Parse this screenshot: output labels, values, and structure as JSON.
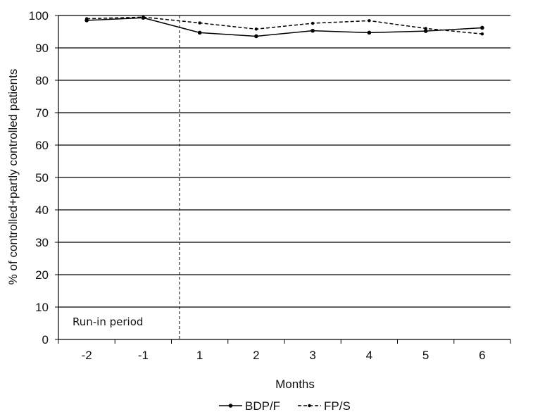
{
  "chart_data": {
    "type": "line",
    "title": "",
    "xlabel": "Months",
    "ylabel": "% of controlled+partly controlled patients",
    "categories": [
      "-2",
      "-1",
      "1",
      "2",
      "3",
      "4",
      "5",
      "6"
    ],
    "ylim": [
      0,
      100
    ],
    "yticks": [
      0,
      10,
      20,
      30,
      40,
      50,
      60,
      70,
      80,
      90,
      100
    ],
    "grid": "horizontal",
    "legend_position": "bottom",
    "annotation": "Run-in period",
    "series": [
      {
        "name": "BDP/F",
        "style": "solid",
        "color": "#000000",
        "values": [
          98.5,
          99.3,
          94.7,
          93.6,
          95.3,
          94.7,
          95.2,
          96.2
        ]
      },
      {
        "name": "FP/S",
        "style": "dashed",
        "color": "#000000",
        "values": [
          99.0,
          99.5,
          97.7,
          95.8,
          97.6,
          98.4,
          96.0,
          94.3
        ]
      }
    ]
  }
}
